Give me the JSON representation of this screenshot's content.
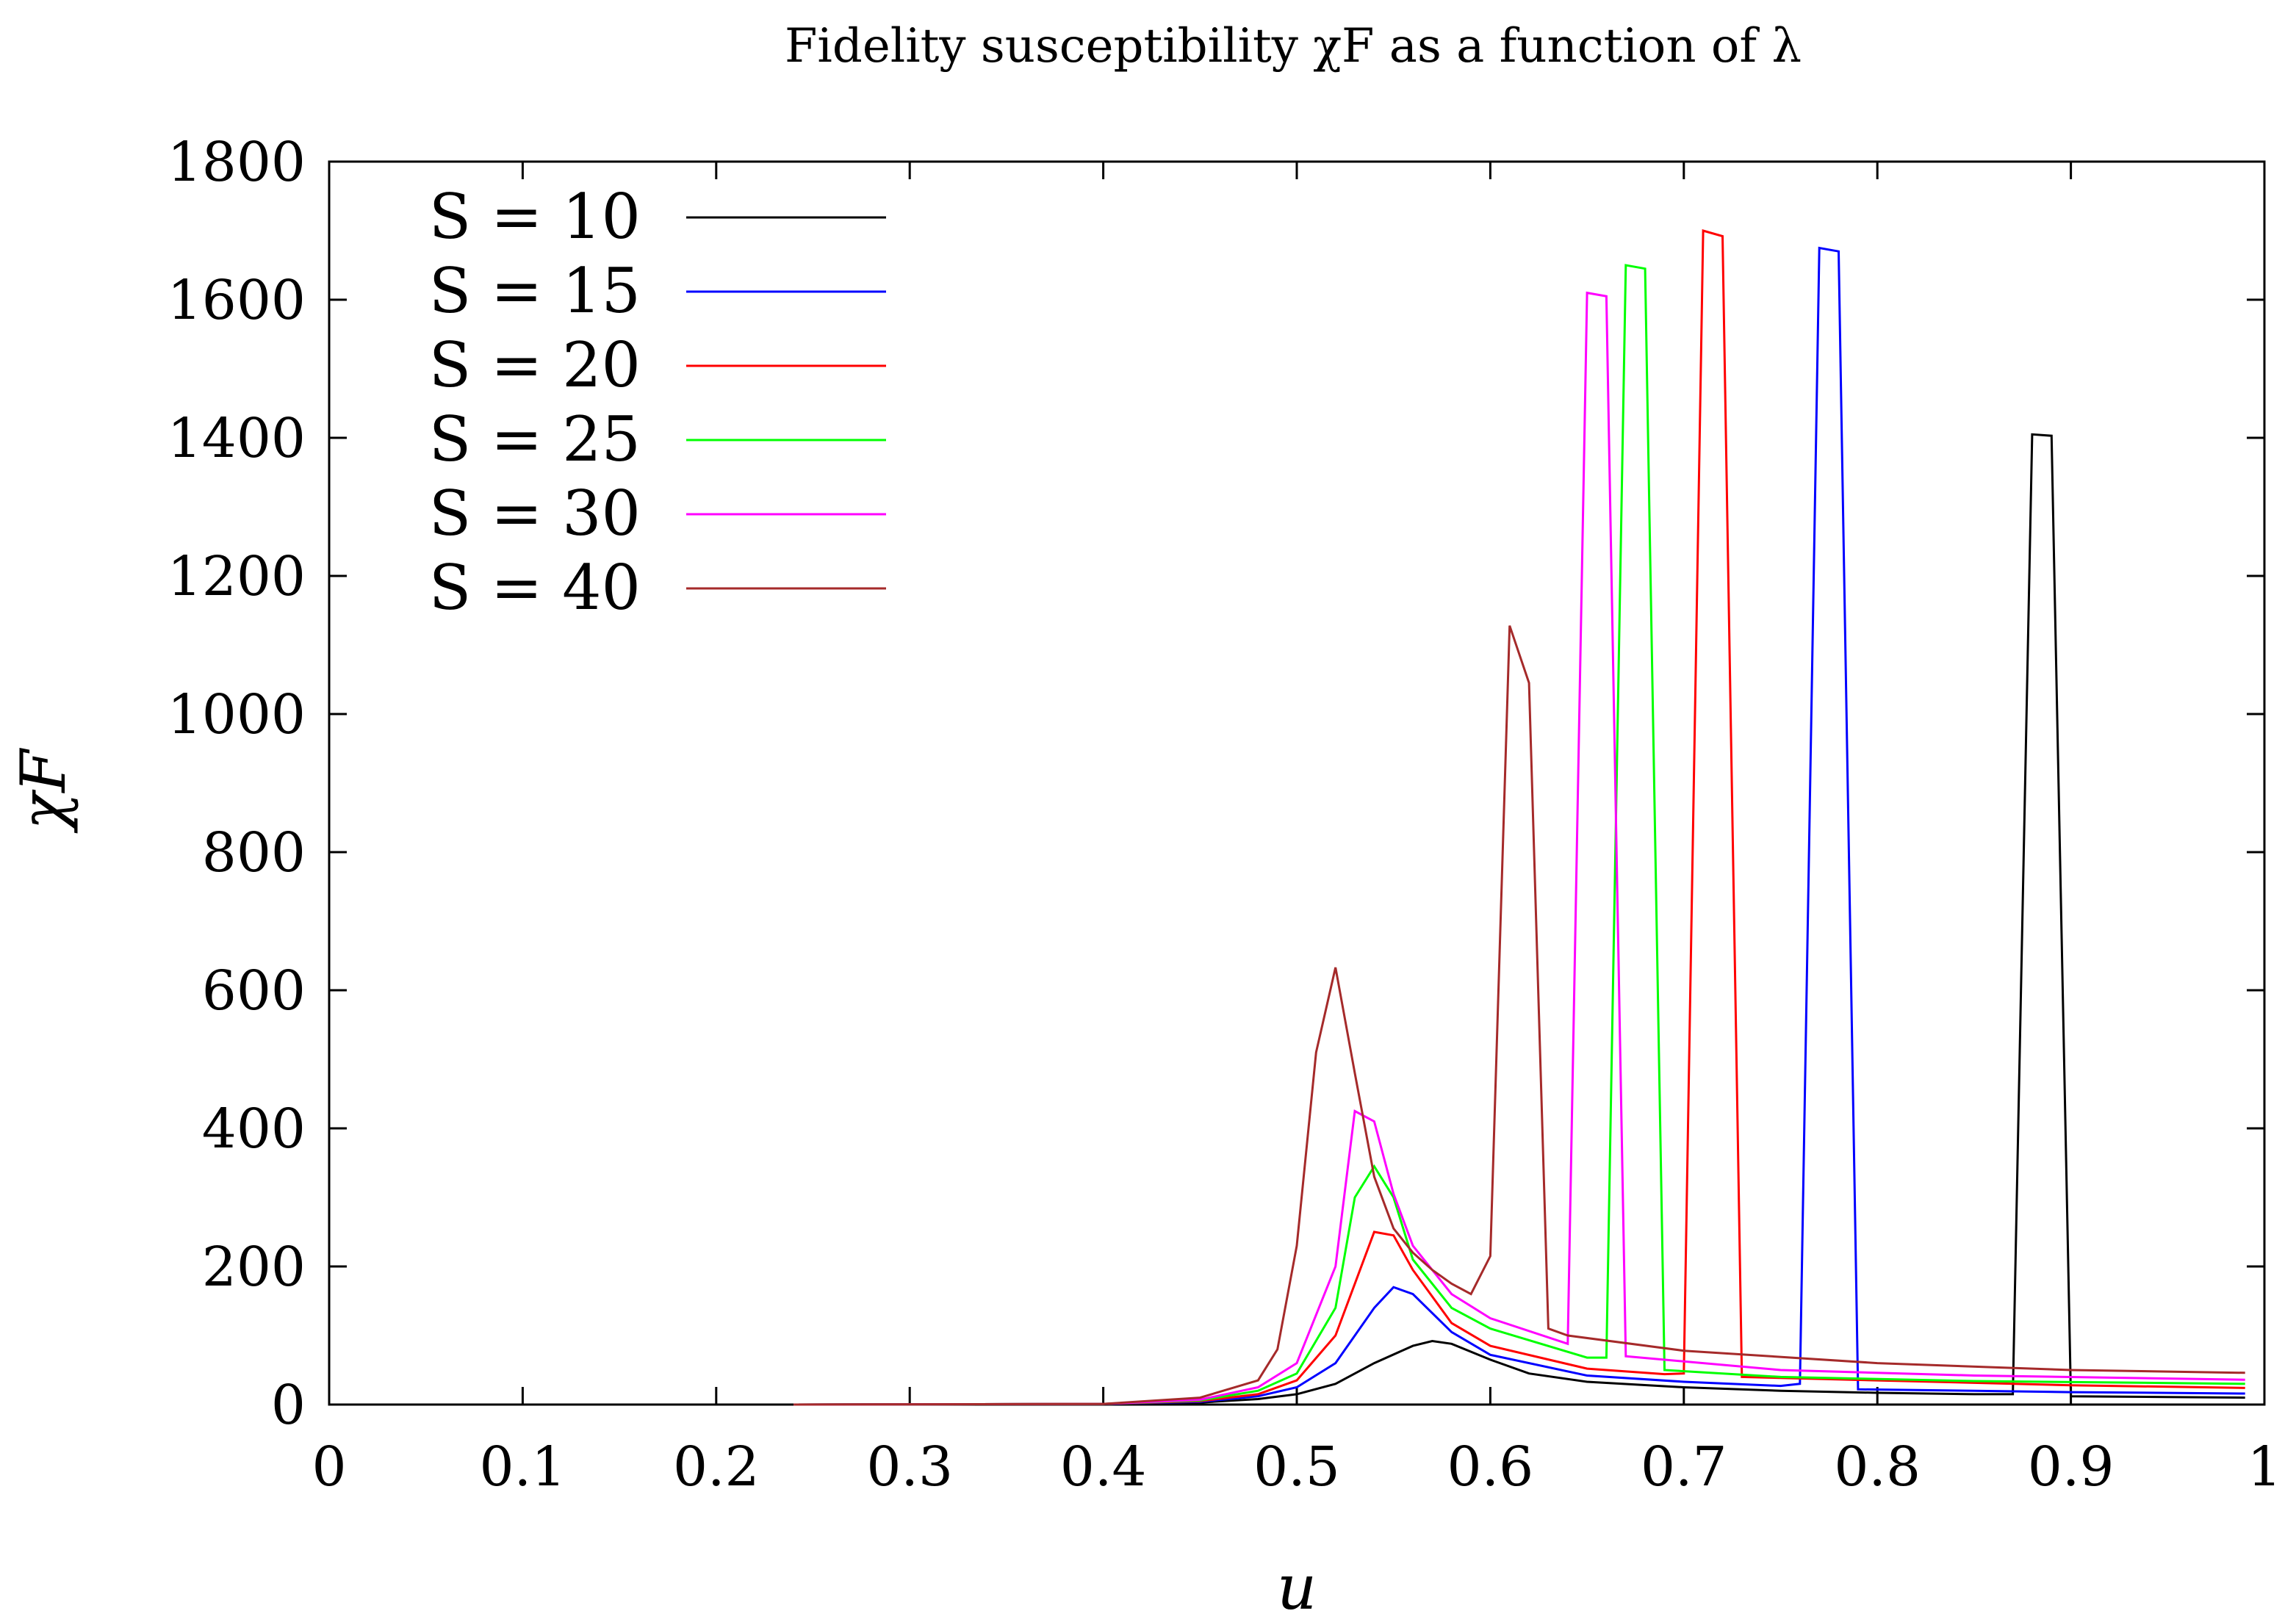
{
  "chart_data": {
    "type": "line",
    "title": "Fidelity susceptibility χF as a function of λ",
    "xlabel": "u",
    "ylabel": "χF",
    "xlim": [
      0,
      1
    ],
    "ylim": [
      0,
      1800
    ],
    "xticks": [
      "0",
      "0.1",
      "0.2",
      "0.3",
      "0.4",
      "0.5",
      "0.6",
      "0.7",
      "0.8",
      "0.9",
      "1"
    ],
    "yticks": [
      "0",
      "200",
      "400",
      "600",
      "800",
      "1000",
      "1200",
      "1400",
      "1600",
      "1800"
    ],
    "legend_position": "top-left",
    "series": [
      {
        "name": "S = 10",
        "color": "#000000",
        "x": [
          0.24,
          0.4,
          0.45,
          0.48,
          0.5,
          0.52,
          0.54,
          0.56,
          0.57,
          0.58,
          0.6,
          0.62,
          0.65,
          0.7,
          0.75,
          0.8,
          0.85,
          0.87,
          0.88,
          0.89,
          0.9,
          0.95,
          0.99
        ],
        "y": [
          0,
          1,
          3,
          8,
          15,
          30,
          60,
          85,
          92,
          88,
          65,
          45,
          33,
          25,
          20,
          17,
          15,
          15,
          1405,
          1403,
          12,
          11,
          10
        ]
      },
      {
        "name": "S = 15",
        "color": "#0000ff",
        "x": [
          0.24,
          0.4,
          0.45,
          0.48,
          0.5,
          0.52,
          0.54,
          0.55,
          0.56,
          0.58,
          0.6,
          0.65,
          0.7,
          0.75,
          0.76,
          0.77,
          0.78,
          0.79,
          0.85,
          0.9,
          0.99
        ],
        "y": [
          0,
          1,
          4,
          12,
          25,
          60,
          140,
          170,
          160,
          105,
          72,
          42,
          33,
          27,
          30,
          1675,
          1670,
          22,
          20,
          18,
          16
        ]
      },
      {
        "name": "S = 20",
        "color": "#ff0000",
        "x": [
          0.24,
          0.4,
          0.45,
          0.48,
          0.5,
          0.52,
          0.54,
          0.55,
          0.56,
          0.58,
          0.6,
          0.65,
          0.69,
          0.7,
          0.71,
          0.72,
          0.73,
          0.8,
          0.9,
          0.99
        ],
        "y": [
          0,
          1,
          5,
          15,
          35,
          100,
          250,
          245,
          195,
          118,
          85,
          52,
          44,
          45,
          1700,
          1692,
          40,
          35,
          28,
          24
        ]
      },
      {
        "name": "S = 25",
        "color": "#00ff00",
        "x": [
          0.24,
          0.4,
          0.45,
          0.48,
          0.5,
          0.52,
          0.53,
          0.54,
          0.55,
          0.56,
          0.58,
          0.6,
          0.65,
          0.66,
          0.67,
          0.68,
          0.69,
          0.75,
          0.85,
          0.99
        ],
        "y": [
          0,
          1,
          6,
          20,
          45,
          140,
          300,
          345,
          300,
          210,
          140,
          110,
          68,
          68,
          1650,
          1645,
          50,
          40,
          34,
          30
        ]
      },
      {
        "name": "S = 30",
        "color": "#ff00ff",
        "x": [
          0.24,
          0.4,
          0.45,
          0.48,
          0.5,
          0.52,
          0.53,
          0.54,
          0.55,
          0.56,
          0.58,
          0.6,
          0.64,
          0.65,
          0.66,
          0.67,
          0.75,
          0.85,
          0.99
        ],
        "y": [
          0,
          1,
          7,
          25,
          60,
          200,
          425,
          410,
          305,
          230,
          160,
          125,
          88,
          1610,
          1605,
          70,
          50,
          42,
          36
        ]
      },
      {
        "name": "S = 40",
        "color": "#a52a2a",
        "x": [
          0.24,
          0.4,
          0.45,
          0.48,
          0.49,
          0.5,
          0.51,
          0.52,
          0.53,
          0.54,
          0.55,
          0.56,
          0.57,
          0.58,
          0.59,
          0.6,
          0.61,
          0.62,
          0.63,
          0.64,
          0.7,
          0.8,
          0.9,
          0.99
        ],
        "y": [
          0,
          1,
          10,
          35,
          80,
          230,
          510,
          633,
          480,
          330,
          255,
          220,
          195,
          175,
          160,
          215,
          1128,
          1045,
          110,
          100,
          78,
          60,
          50,
          46
        ]
      }
    ]
  }
}
